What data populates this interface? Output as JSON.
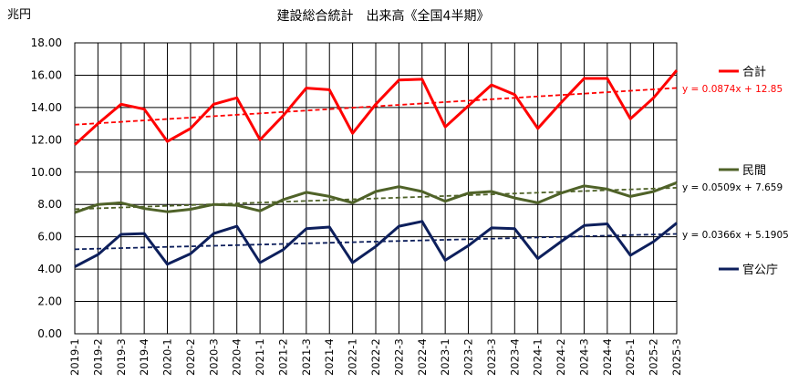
{
  "chart_data": {
    "type": "line",
    "title": "建設総合統計　出来高《全国4半期》",
    "ylabel": "兆円",
    "ylim": [
      0,
      18
    ],
    "yticks": [
      "0.00",
      "2.00",
      "4.00",
      "6.00",
      "8.00",
      "10.00",
      "12.00",
      "14.00",
      "16.00",
      "18.00"
    ],
    "grid": true,
    "legend_position": "right",
    "categories": [
      "2019-1",
      "2019-2",
      "2019-3",
      "2019-4",
      "2020-1",
      "2020-2",
      "2020-3",
      "2020-4",
      "2021-1",
      "2021-2",
      "2021-3",
      "2021-4",
      "2022-1",
      "2022-2",
      "2022-3",
      "2022-4",
      "2023-1",
      "2023-2",
      "2023-3",
      "2023-4",
      "2024-1",
      "2024-2",
      "2024-3",
      "2024-4",
      "2025-1",
      "2025-2",
      "2025-3"
    ],
    "series": [
      {
        "name": "合計",
        "color": "#ff0000",
        "values": [
          11.7,
          13.0,
          14.2,
          13.9,
          11.9,
          12.7,
          14.2,
          14.6,
          12.0,
          13.5,
          15.2,
          15.1,
          12.4,
          14.2,
          15.7,
          15.75,
          12.8,
          14.1,
          15.4,
          14.8,
          12.7,
          14.3,
          15.8,
          15.8,
          13.3,
          14.6,
          16.3
        ],
        "trendline": {
          "slope": 0.0874,
          "intercept": 12.85,
          "label": "y = 0.0874x + 12.85"
        }
      },
      {
        "name": "民間",
        "color": "#4f6228",
        "values": [
          7.5,
          8.0,
          8.1,
          7.75,
          7.55,
          7.7,
          8.0,
          7.95,
          7.6,
          8.3,
          8.75,
          8.5,
          8.1,
          8.8,
          9.1,
          8.8,
          8.2,
          8.7,
          8.8,
          8.4,
          8.1,
          8.7,
          9.15,
          8.95,
          8.5,
          8.8,
          9.35
        ],
        "trendline": {
          "slope": 0.0509,
          "intercept": 7.659,
          "label": "y = 0.0509x + 7.659"
        }
      },
      {
        "name": "官公庁",
        "color": "#0d1f5c",
        "values": [
          4.15,
          4.9,
          6.15,
          6.2,
          4.3,
          4.95,
          6.2,
          6.65,
          4.4,
          5.2,
          6.5,
          6.6,
          4.4,
          5.4,
          6.65,
          6.95,
          4.55,
          5.45,
          6.55,
          6.5,
          4.65,
          5.7,
          6.7,
          6.8,
          4.85,
          5.7,
          6.85
        ],
        "trendline": {
          "slope": 0.0366,
          "intercept": 5.1905,
          "label": "y = 0.0366x + 5.1905"
        }
      }
    ]
  }
}
